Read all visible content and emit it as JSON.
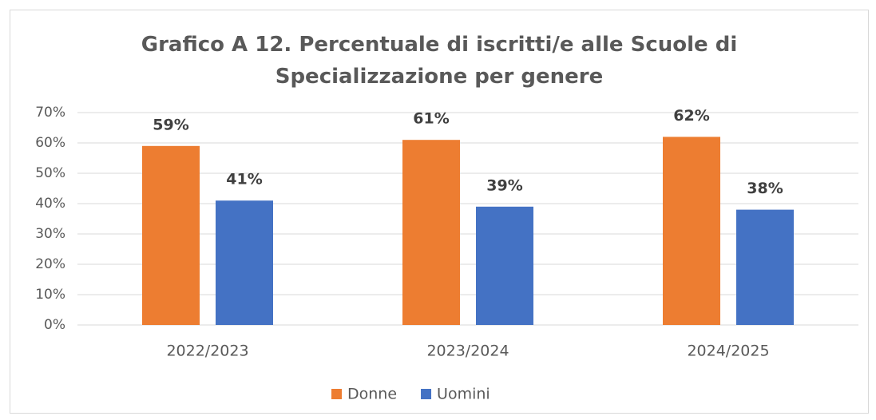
{
  "chart_data": {
    "type": "bar",
    "title": "Grafico A 12. Percentuale di iscritti/e alle Scuole di Specializzazione per genere",
    "categories": [
      "2022/2023",
      "2023/2024",
      "2024/2025"
    ],
    "series": [
      {
        "name": "Donne",
        "color": "#ed7d31",
        "values": [
          59,
          61,
          62
        ],
        "value_labels": [
          "59%",
          "61%",
          "62%"
        ]
      },
      {
        "name": "Uomini",
        "color": "#4472c4",
        "values": [
          41,
          39,
          38
        ],
        "value_labels": [
          "41%",
          "39%",
          "38%"
        ]
      }
    ],
    "ylim": [
      0,
      70
    ],
    "yticks": [
      {
        "value": 0,
        "label": "0%"
      },
      {
        "value": 10,
        "label": "10%"
      },
      {
        "value": 20,
        "label": "20%"
      },
      {
        "value": 30,
        "label": "30%"
      },
      {
        "value": 40,
        "label": "40%"
      },
      {
        "value": 50,
        "label": "50%"
      },
      {
        "value": 60,
        "label": "60%"
      },
      {
        "value": 70,
        "label": "70%"
      }
    ],
    "grid": true,
    "legend": "bottom"
  }
}
